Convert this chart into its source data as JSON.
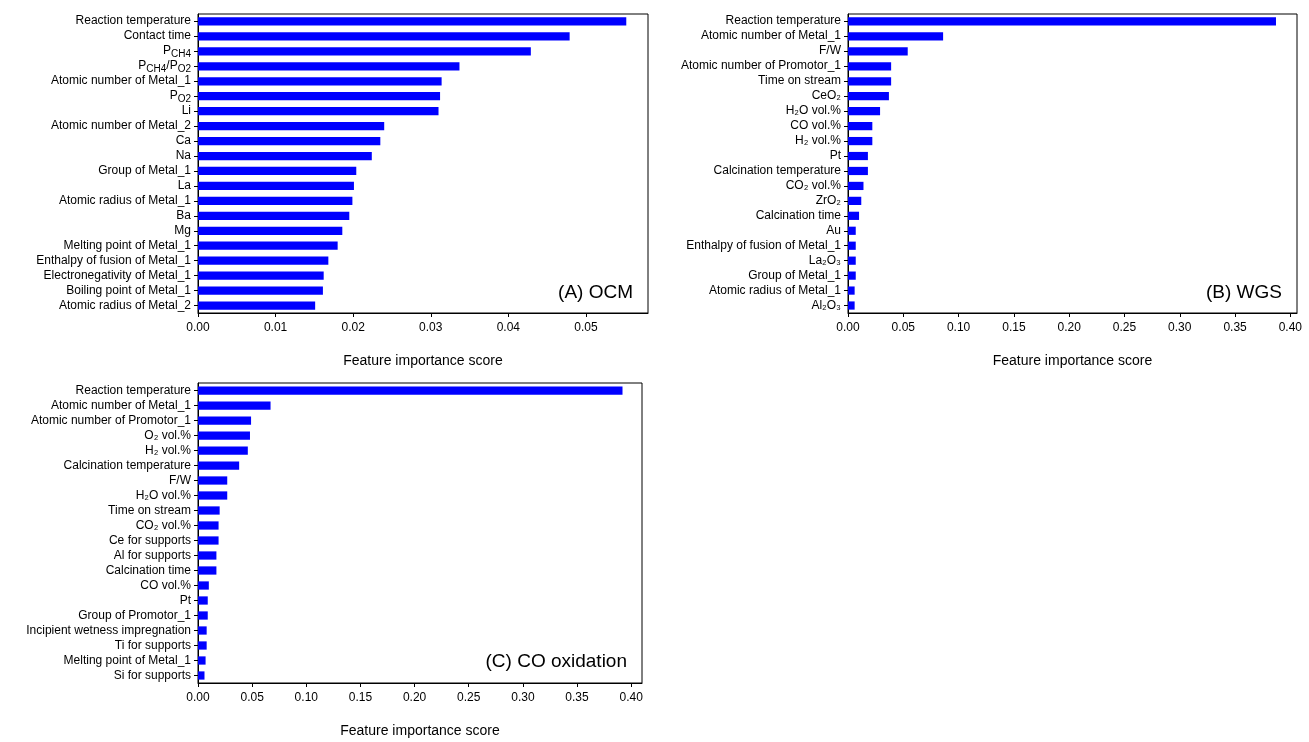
{
  "chart_data": [
    {
      "type": "bar",
      "orientation": "horizontal",
      "title": "(A) OCM",
      "xlabel": "Feature importance score",
      "grid": false,
      "xlim": [
        0,
        0.058
      ],
      "xticks": [
        {
          "value": 0,
          "label": "0.00"
        },
        0.01,
        0.02,
        0.03,
        0.04,
        0.05
      ],
      "categories": [
        "Reaction temperature",
        "Contact time",
        "P$_{CH4}$",
        "P$_{CH4}$/P$_{O2}$",
        "Atomic number of Metal_1",
        "P$_{O2}$",
        "Li",
        "Atomic number of Metal_2",
        "Ca",
        "Na",
        "Group of Metal_1",
        "La",
        "Atomic radius of Metal_1",
        "Ba",
        "Mg",
        "Melting point of Metal_1",
        "Enthalpy of fusion of Metal_1",
        "Electronegativity of Metal_1",
        "Boiling point of Metal_1",
        "Atomic radius of Metal_2"
      ],
      "series": [
        {
          "color": "#0000ff",
          "values": [
            0.0552,
            0.0479,
            0.0429,
            0.0337,
            0.0314,
            0.0312,
            0.031,
            0.024,
            0.0235,
            0.0224,
            0.0204,
            0.0201,
            0.0199,
            0.0195,
            0.0186,
            0.018,
            0.0168,
            0.0162,
            0.0161,
            0.0151
          ]
        }
      ]
    },
    {
      "type": "bar",
      "orientation": "horizontal",
      "title": "(B) WGS",
      "xlabel": "Feature importance score",
      "grid": false,
      "xlim": [
        0,
        0.406
      ],
      "xticks": [
        {
          "value": 0,
          "label": "0.00"
        },
        0.05,
        {
          "value": 0.1,
          "label": "0.10"
        },
        0.15,
        {
          "value": 0.2,
          "label": "0.20"
        },
        0.25,
        {
          "value": 0.3,
          "label": "0.30"
        },
        0.35,
        {
          "value": 0.4,
          "label": "0.40"
        }
      ],
      "categories": [
        "Reaction temperature",
        "Atomic number of Metal_1",
        "F/W",
        "Atomic number of Promotor_1",
        "Time on stream",
        "CeO₂",
        "H₂O vol.%",
        "CO vol.%",
        "H₂ vol.%",
        "Pt",
        "Calcination temperature",
        "CO₂ vol.%",
        "ZrO₂",
        "Calcination time",
        "Au",
        "Enthalpy of fusion of Metal_1",
        "La₂O₃",
        "Group of Metal_1",
        "Atomic radius of Metal_1",
        "Al₂O₃"
      ],
      "series": [
        {
          "color": "#0000ff",
          "values": [
            0.387,
            0.086,
            0.054,
            0.039,
            0.039,
            0.037,
            0.029,
            0.022,
            0.022,
            0.018,
            0.018,
            0.014,
            0.012,
            0.01,
            0.007,
            0.007,
            0.007,
            0.007,
            0.006,
            0.006
          ]
        }
      ]
    },
    {
      "type": "bar",
      "orientation": "horizontal",
      "title": "(C) CO oxidation",
      "xlabel": "Feature importance score",
      "grid": false,
      "xlim": [
        0,
        0.41
      ],
      "xticks": [
        {
          "value": 0,
          "label": "0.00"
        },
        0.05,
        {
          "value": 0.1,
          "label": "0.10"
        },
        0.15,
        {
          "value": 0.2,
          "label": "0.20"
        },
        0.25,
        {
          "value": 0.3,
          "label": "0.30"
        },
        0.35,
        {
          "value": 0.4,
          "label": "0.40"
        }
      ],
      "categories": [
        "Reaction temperature",
        "Atomic number of Metal_1",
        "Atomic number of Promotor_1",
        "O₂ vol.%",
        "H₂ vol.%",
        "Calcination temperature",
        "F/W",
        "H₂O vol.%",
        "Time on stream",
        "CO₂ vol.%",
        "Ce for supports",
        "Al for supports",
        "Calcination time",
        "CO vol.%",
        "Pt",
        "Group of Promotor_1",
        "Incipient wetness impregnation",
        "Ti for supports",
        "Melting point of Metal_1",
        "Si for supports"
      ],
      "series": [
        {
          "color": "#0000ff",
          "values": [
            0.392,
            0.067,
            0.049,
            0.048,
            0.046,
            0.038,
            0.027,
            0.027,
            0.02,
            0.019,
            0.019,
            0.017,
            0.017,
            0.01,
            0.009,
            0.009,
            0.008,
            0.008,
            0.007,
            0.006
          ]
        }
      ]
    }
  ]
}
